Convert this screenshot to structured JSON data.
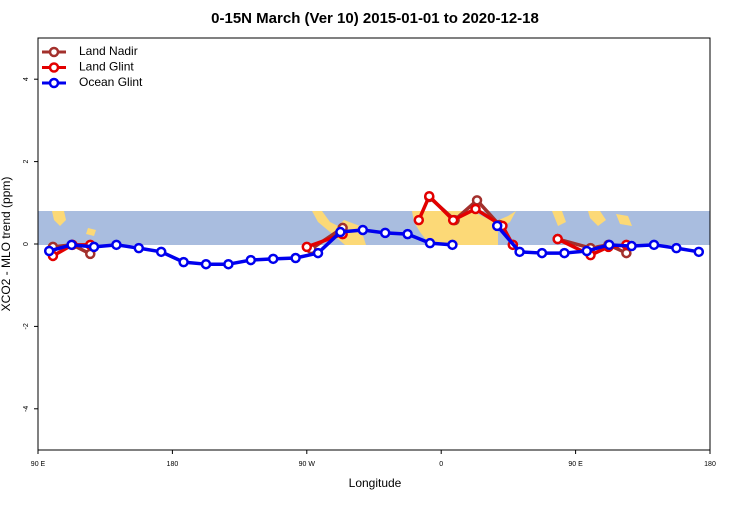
{
  "chart_data": {
    "type": "line",
    "title": "0-15N March (Ver 10)   2015-01-01 to 2020-12-18",
    "x_label": "Longitude",
    "y_label": "XCO2 - MLO trend (ppm)",
    "xlim": [
      90,
      540
    ],
    "ylim": [
      -5,
      5
    ],
    "xticks": [
      {
        "value": 90,
        "label": "90 E"
      },
      {
        "value": 180,
        "label": "180"
      },
      {
        "value": 270,
        "label": "90 W"
      },
      {
        "value": 360,
        "label": "0"
      },
      {
        "value": 450,
        "label": "90 E"
      },
      {
        "value": 540,
        "label": "180"
      }
    ],
    "yticks": [
      -4,
      -2,
      0,
      2,
      4
    ],
    "legend": "top-left",
    "series": [
      {
        "name": "Land Nadir",
        "color": "#a3302c",
        "x": [
          100,
          113,
          125,
          null,
          273,
          294,
          null,
          352,
          369,
          384,
          399,
          408,
          null,
          438,
          460,
          472,
          484
        ],
        "values": [
          -0.07,
          -0.02,
          -0.24,
          null,
          -0.12,
          0.39,
          null,
          1.14,
          0.58,
          1.06,
          0.46,
          -0.02,
          null,
          0.12,
          -0.1,
          -0.02,
          -0.22
        ]
      },
      {
        "name": "Land Glint",
        "color": "#e30000",
        "x": [
          100,
          113,
          125,
          null,
          270,
          294,
          null,
          345,
          352,
          368,
          383,
          401,
          408,
          null,
          438,
          460,
          472,
          484
        ],
        "values": [
          -0.29,
          -0.02,
          -0.02,
          null,
          -0.07,
          0.24,
          null,
          0.58,
          1.16,
          0.58,
          0.85,
          0.44,
          -0.02,
          null,
          0.12,
          -0.27,
          -0.07,
          -0.02
        ]
      },
      {
        "name": "Ocean Glint",
        "color": "#0000ee",
        "x": [
          97.5,
          112.5,
          127.5,
          142.5,
          157.5,
          172.5,
          187.5,
          202.5,
          217.5,
          232.5,
          247.5,
          262.5,
          277.5,
          292.5,
          307.5,
          322.5,
          337.5,
          352.5,
          367.5,
          null,
          397.5,
          412.5,
          427.5,
          442.5,
          457.5,
          472.5,
          487.5,
          502.5,
          517.5,
          532.5
        ],
        "values": [
          -0.17,
          -0.02,
          -0.07,
          -0.02,
          -0.1,
          -0.19,
          -0.44,
          -0.49,
          -0.49,
          -0.39,
          -0.36,
          -0.34,
          -0.22,
          0.29,
          0.34,
          0.27,
          0.24,
          0.02,
          -0.02,
          null,
          0.44,
          -0.19,
          -0.22,
          -0.22,
          -0.17,
          -0.02,
          -0.05,
          -0.02,
          -0.1,
          -0.19
        ]
      }
    ]
  }
}
